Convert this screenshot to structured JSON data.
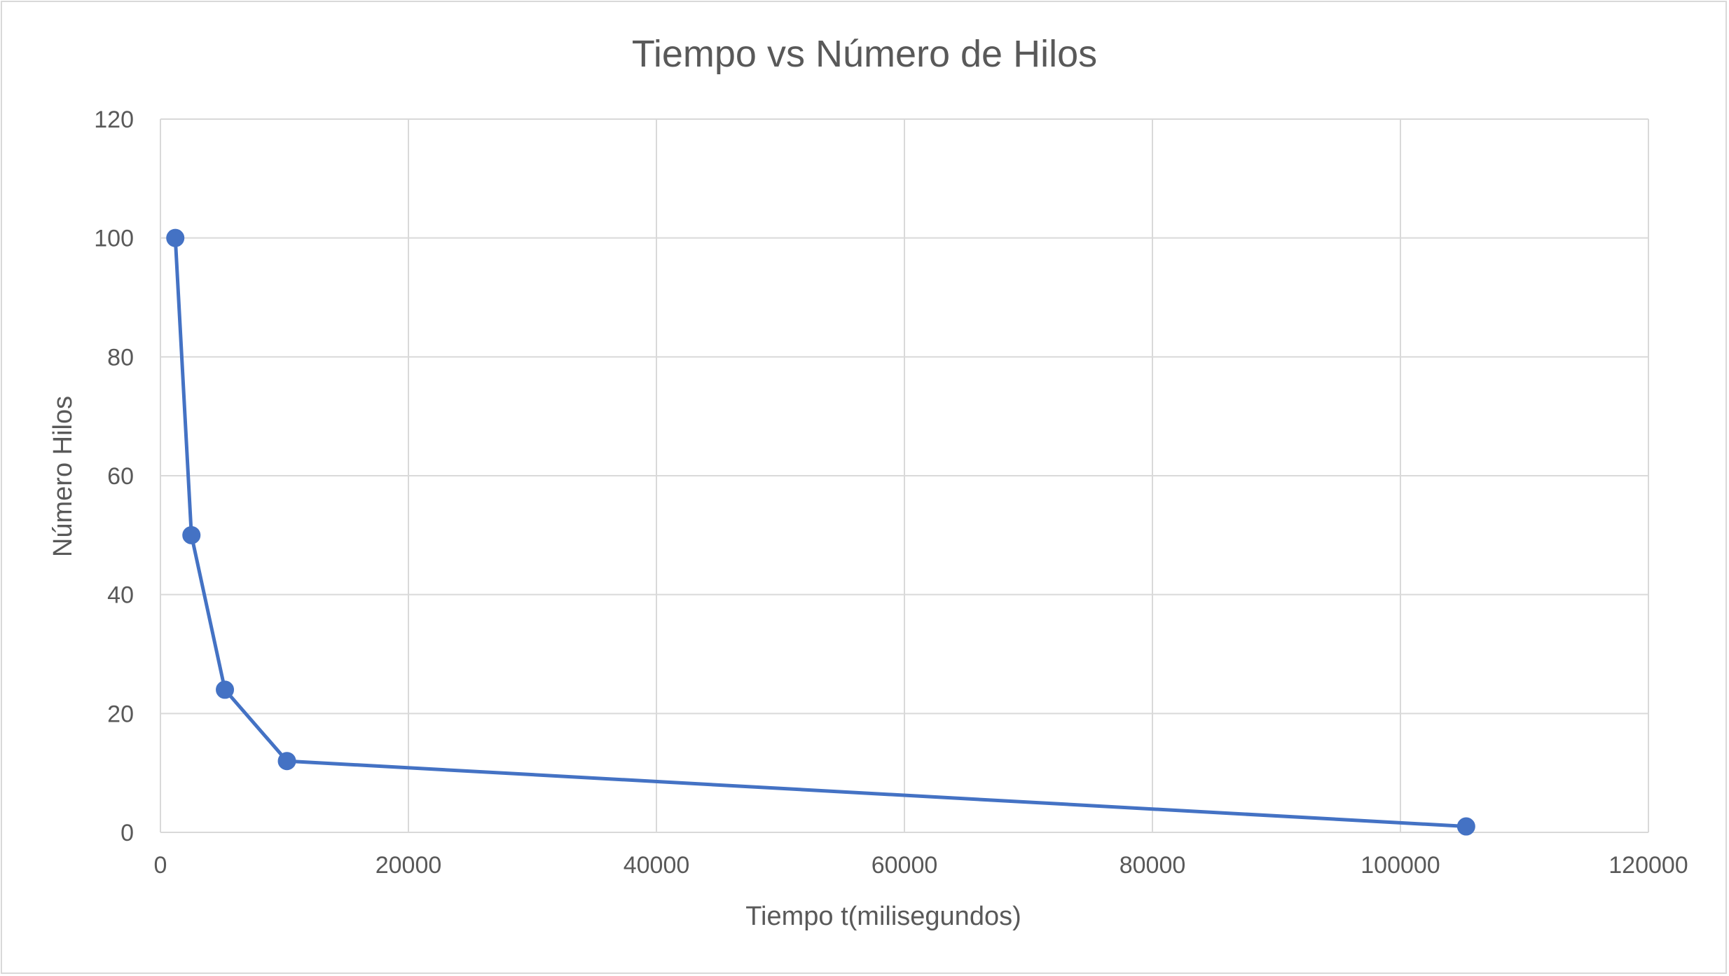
{
  "chart_data": {
    "type": "scatter",
    "title": "Tiempo vs Número de Hilos",
    "xlabel": "Tiempo t(milisegundos)",
    "ylabel": "Número Hilos",
    "xlim": [
      0,
      120000
    ],
    "ylim": [
      0,
      120
    ],
    "x_ticks": [
      0,
      20000,
      40000,
      60000,
      80000,
      100000,
      120000
    ],
    "y_ticks": [
      0,
      20,
      40,
      60,
      80,
      100,
      120
    ],
    "grid": true,
    "legend": "none",
    "line_color": "#4472c4",
    "series": [
      {
        "points": [
          {
            "x": 1200,
            "y": 100
          },
          {
            "x": 2500,
            "y": 50
          },
          {
            "x": 5200,
            "y": 24
          },
          {
            "x": 10200,
            "y": 12
          },
          {
            "x": 105300,
            "y": 1
          }
        ]
      }
    ]
  }
}
